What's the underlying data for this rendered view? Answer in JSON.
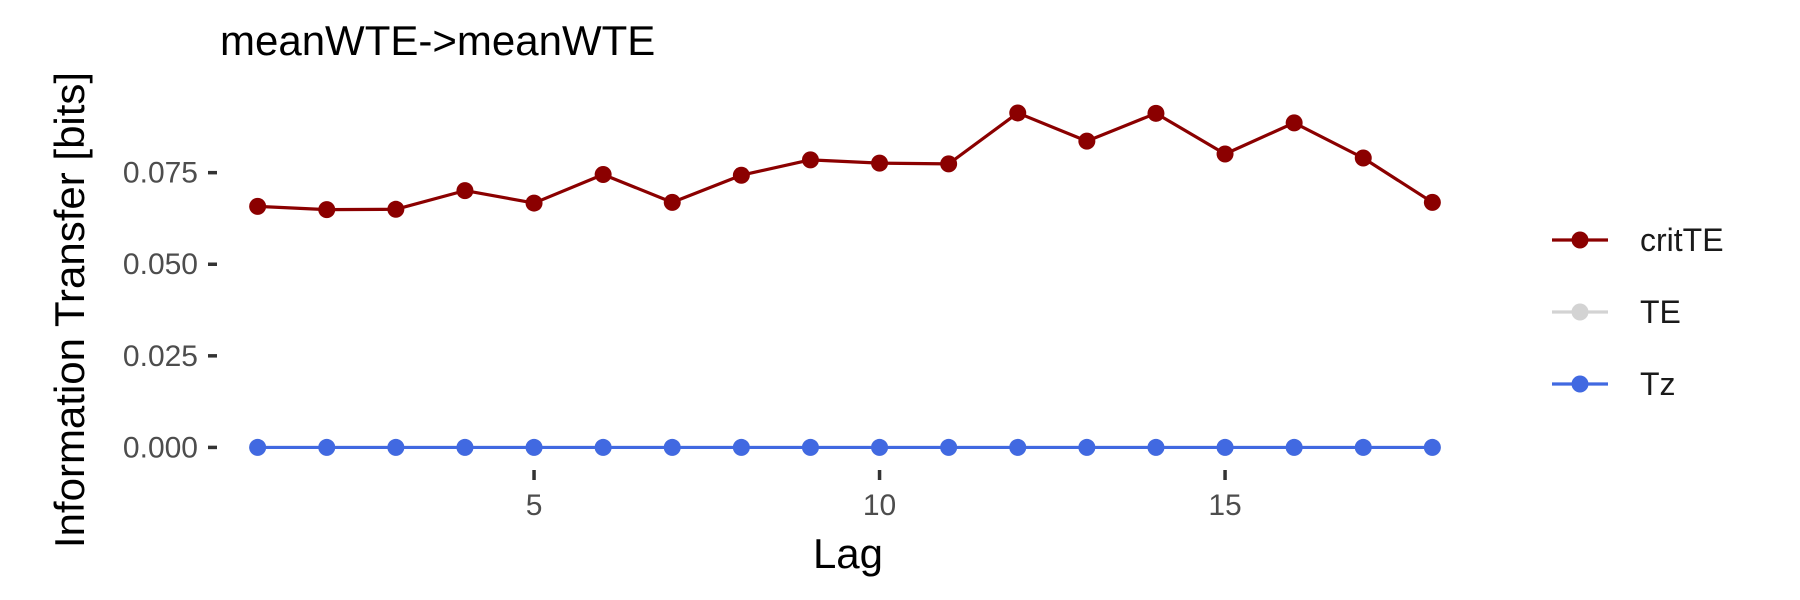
{
  "chart_data": {
    "type": "line",
    "title": "meanWTE->meanWTE",
    "xlabel": "Lag",
    "ylabel": "Information Transfer [bits]",
    "x": [
      1,
      2,
      3,
      4,
      5,
      6,
      7,
      8,
      9,
      10,
      11,
      12,
      13,
      14,
      15,
      16,
      17,
      18
    ],
    "xlim": [
      0.6,
      18.4
    ],
    "ylim": [
      -0.0048,
      0.0962
    ],
    "x_ticks": [
      {
        "value": 5,
        "label": "5"
      },
      {
        "value": 10,
        "label": "10"
      },
      {
        "value": 15,
        "label": "15"
      }
    ],
    "y_ticks": [
      {
        "value": 0,
        "label": "0.000"
      },
      {
        "value": 0.025,
        "label": "0.025"
      },
      {
        "value": 0.05,
        "label": "0.050"
      },
      {
        "value": 0.075,
        "label": "0.075"
      }
    ],
    "grid": false,
    "legend_position": "right",
    "series": [
      {
        "name": "critTE",
        "color": "#8b0000",
        "values": [
          0.0658,
          0.0649,
          0.065,
          0.0701,
          0.0667,
          0.0745,
          0.0669,
          0.0743,
          0.0785,
          0.0776,
          0.0774,
          0.0913,
          0.0836,
          0.0912,
          0.0801,
          0.0886,
          0.079,
          0.0669
        ]
      },
      {
        "name": "TE",
        "color": "#d3d3d3",
        "values": [
          0,
          0,
          0,
          0,
          0,
          0,
          0,
          0,
          0,
          0,
          0,
          0,
          0,
          0,
          0,
          0,
          0,
          0
        ]
      },
      {
        "name": "Tz",
        "color": "#4169e1",
        "values": [
          0,
          0,
          0,
          0,
          0,
          0,
          0,
          0,
          0,
          0,
          0,
          0,
          0,
          0,
          0,
          0,
          0,
          0
        ]
      }
    ]
  }
}
